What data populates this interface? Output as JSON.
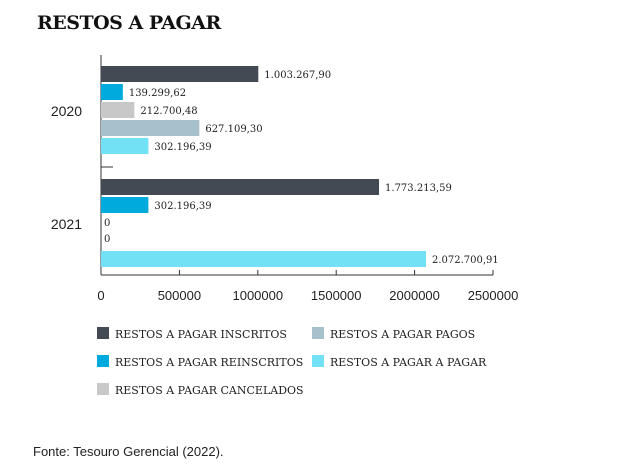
{
  "chart_data": {
    "type": "bar",
    "orientation": "horizontal",
    "title": "RESTOS A PAGAR",
    "categories": [
      "2020",
      "2021"
    ],
    "series": [
      {
        "name": "RESTOS A PAGAR INSCRITOS",
        "color": "#434a54",
        "values": [
          1003267.9,
          1773213.59
        ],
        "labels": [
          "1.003.267,90",
          "1.773.213,59"
        ]
      },
      {
        "name": "RESTOS A PAGAR REINSCRITOS",
        "color": "#00aadd",
        "values": [
          139299.62,
          302196.39
        ],
        "labels": [
          "139.299,62",
          "302.196,39"
        ]
      },
      {
        "name": "RESTOS A PAGAR CANCELADOS",
        "color": "#c8c8c8",
        "values": [
          212700.48,
          0
        ],
        "labels": [
          "212.700,48",
          "0"
        ]
      },
      {
        "name": "RESTOS A PAGAR PAGOS",
        "color": "#a7c1cc",
        "values": [
          627109.3,
          0
        ],
        "labels": [
          "627.109,30",
          "0"
        ]
      },
      {
        "name": "RESTOS A PAGAR A PAGAR",
        "color": "#72e0f5",
        "values": [
          302196.39,
          2072700.91
        ],
        "labels": [
          "302.196,39",
          "2.072.700,91"
        ]
      }
    ],
    "xlim": [
      0,
      2500000
    ],
    "xticks": [
      "0",
      "500000",
      "1000000",
      "1500000",
      "2000000",
      "2500000"
    ],
    "grid": false,
    "legend_placement": "bottom"
  },
  "source": "Fonte: Tesouro Gerencial (2022)."
}
